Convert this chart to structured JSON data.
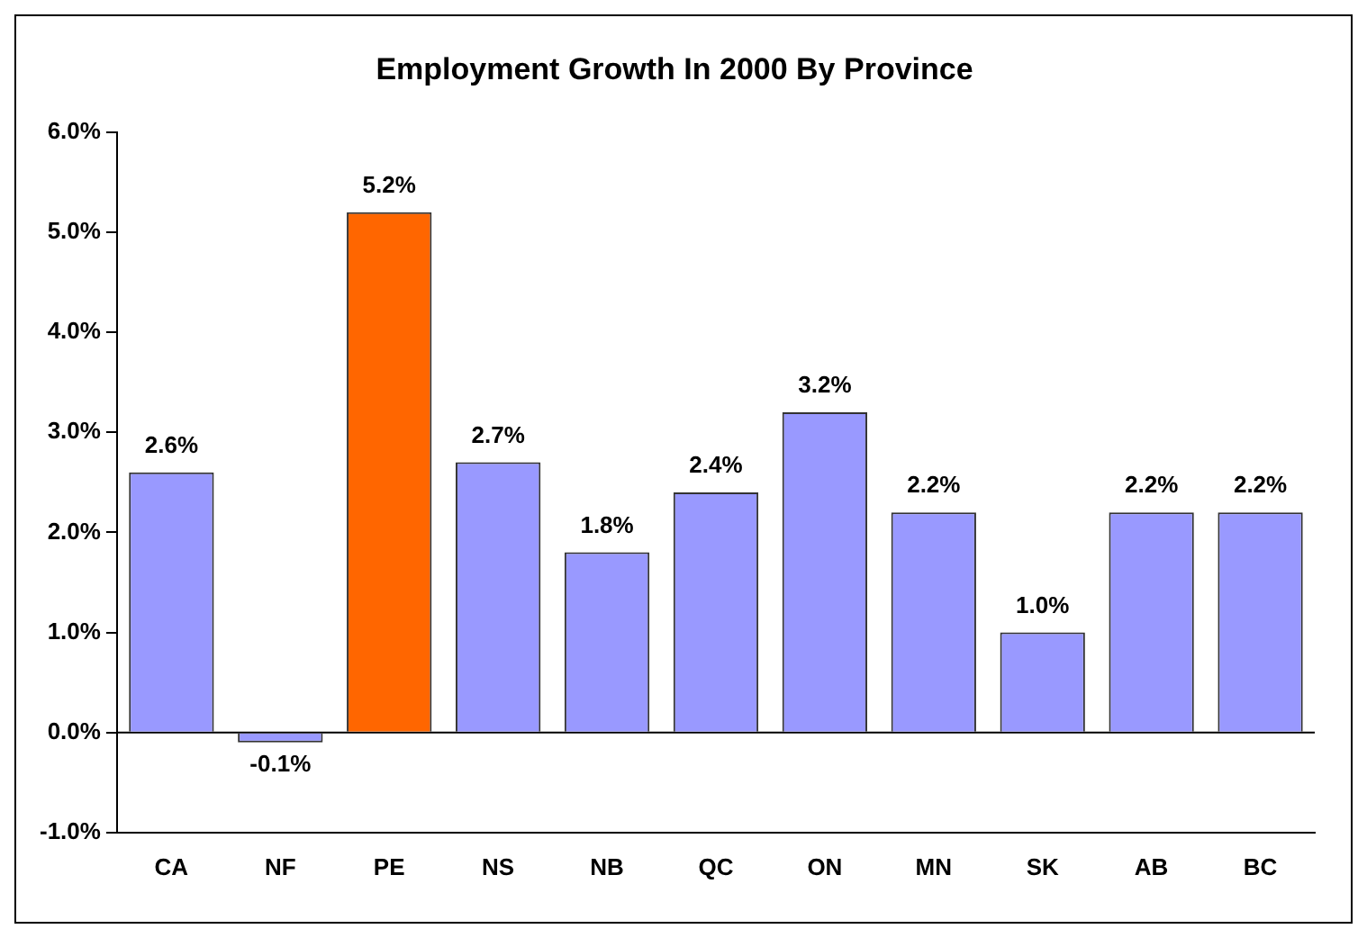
{
  "chart_data": {
    "type": "bar",
    "title": "Employment Growth In 2000 By Province",
    "categories": [
      "CA",
      "NF",
      "PE",
      "NS",
      "NB",
      "QC",
      "ON",
      "MN",
      "SK",
      "AB",
      "BC"
    ],
    "values": [
      2.6,
      -0.1,
      5.2,
      2.7,
      1.8,
      2.4,
      3.2,
      2.2,
      1.0,
      2.2,
      2.2
    ],
    "colors": [
      "#9999ff",
      "#9999ff",
      "#ff6600",
      "#9999ff",
      "#9999ff",
      "#9999ff",
      "#9999ff",
      "#9999ff",
      "#9999ff",
      "#9999ff",
      "#9999ff"
    ],
    "value_labels": [
      "2.6%",
      "-0.1%",
      "5.2%",
      "2.7%",
      "1.8%",
      "2.4%",
      "3.2%",
      "2.2%",
      "1.0%",
      "2.2%",
      "2.2%"
    ],
    "ylim": [
      -1,
      6
    ],
    "yticks": [
      {
        "value": -1,
        "label": "-1.0%"
      },
      {
        "value": 0,
        "label": "0.0%"
      },
      {
        "value": 1,
        "label": "1.0%"
      },
      {
        "value": 2,
        "label": "2.0%"
      },
      {
        "value": 3,
        "label": "3.0%"
      },
      {
        "value": 4,
        "label": "4.0%"
      },
      {
        "value": 5,
        "label": "5.0%"
      },
      {
        "value": 6,
        "label": "6.0%"
      }
    ],
    "ref_lines": [
      {
        "axis": "y",
        "value": 0,
        "color": "#000000"
      }
    ],
    "grid": false,
    "legend": false
  }
}
